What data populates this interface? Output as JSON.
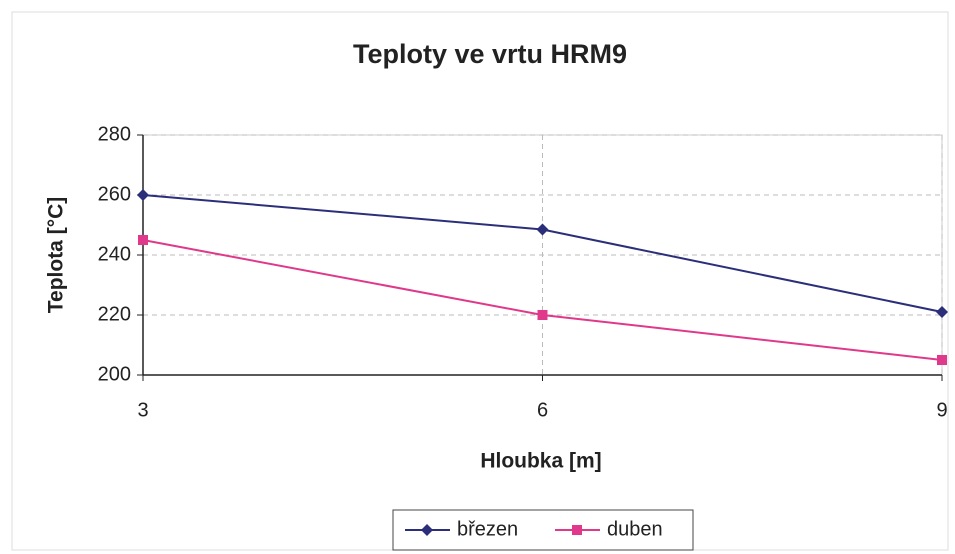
{
  "chart_data": {
    "type": "line",
    "title": "Teploty ve vrtu HRM9",
    "xlabel": "Hloubka [m]",
    "ylabel": "Teplota [°C]",
    "x": [
      3,
      6,
      9
    ],
    "series": [
      {
        "name": "březen",
        "color": "#2b2f7a",
        "marker": "diamond",
        "values": [
          260,
          248.5,
          221
        ]
      },
      {
        "name": "duben",
        "color": "#e0388a",
        "marker": "square",
        "values": [
          245,
          220,
          205
        ]
      }
    ],
    "xlim": [
      3,
      9
    ],
    "xticks": [
      3,
      6,
      9
    ],
    "ylim": [
      200,
      280
    ],
    "yticks": [
      200,
      220,
      240,
      260,
      280
    ],
    "grid": true,
    "legend": "bottom"
  }
}
